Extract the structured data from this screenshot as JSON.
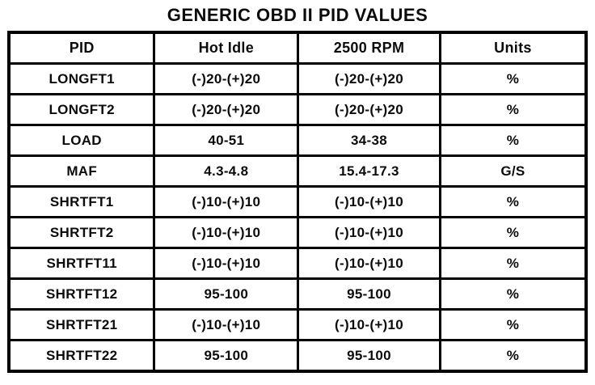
{
  "title": "GENERIC OBD II PID VALUES",
  "colors": {
    "background": "#ffffff",
    "text": "#0b0b0b",
    "border": "#000000"
  },
  "table": {
    "headers": [
      "PID",
      "Hot Idle",
      "2500 RPM",
      "Units"
    ],
    "rows": [
      [
        "LONGFT1",
        "(-)20-(+)20",
        "(-)20-(+)20",
        "%"
      ],
      [
        "LONGFT2",
        "(-)20-(+)20",
        "(-)20-(+)20",
        "%"
      ],
      [
        "LOAD",
        "40-51",
        "34-38",
        "%"
      ],
      [
        "MAF",
        "4.3-4.8",
        "15.4-17.3",
        "G/S"
      ],
      [
        "SHRTFT1",
        "(-)10-(+)10",
        "(-)10-(+)10",
        "%"
      ],
      [
        "SHRTFT2",
        "(-)10-(+)10",
        "(-)10-(+)10",
        "%"
      ],
      [
        "SHRTFT11",
        "(-)10-(+)10",
        "(-)10-(+)10",
        "%"
      ],
      [
        "SHRTFT12",
        "95-100",
        "95-100",
        "%"
      ],
      [
        "SHRTFT21",
        "(-)10-(+)10",
        "(-)10-(+)10",
        "%"
      ],
      [
        "SHRTFT22",
        "95-100",
        "95-100",
        "%"
      ]
    ]
  }
}
